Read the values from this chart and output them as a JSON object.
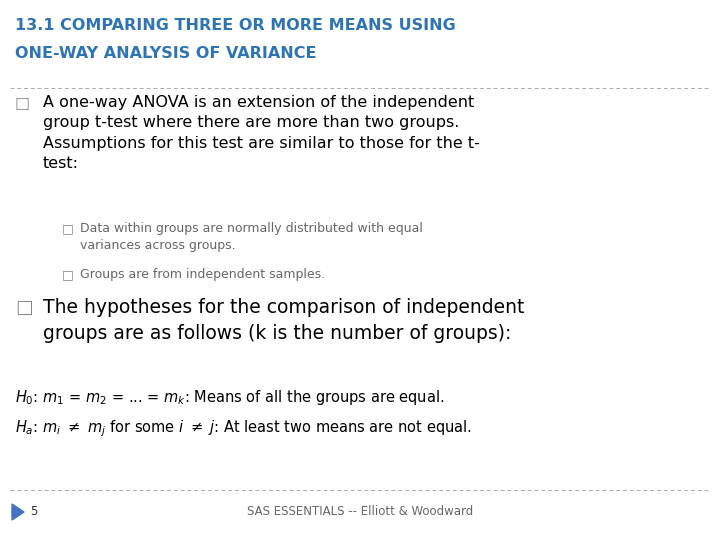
{
  "title_line1": "13.1 COMPARING THREE OR MORE MEANS USING",
  "title_line2": "ONE-WAY ANALYSIS OF VARIANCE",
  "title_color": "#2E74B5",
  "background_color": "#FFFFFF",
  "separator_color": "#AAAAAA",
  "footer_page": "5",
  "footer_text": "SAS ESSENTIALS -- Elliott & Woodward",
  "arrow_color": "#4472C4",
  "title_fontsize": 11.5,
  "main_bullet_fontsize": 11.5,
  "sub_bullet_fontsize": 9.0,
  "hyp_fontsize": 10.5,
  "footer_fontsize": 8.5
}
